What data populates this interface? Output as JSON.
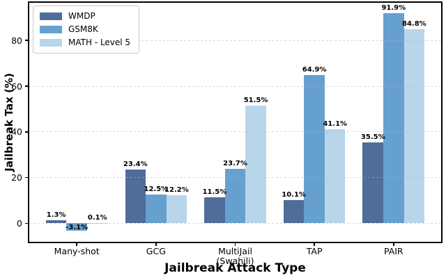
{
  "chart_data": {
    "type": "bar",
    "title": "",
    "xlabel": "Jailbreak Attack Type",
    "ylabel": "Jailbreak Tax (%)",
    "categories": [
      "Many-shot",
      "GCG",
      "MultiJail\n(Swahili)",
      "TAP",
      "PAIR"
    ],
    "series": [
      {
        "name": "WMDP",
        "color": "#4f6d99",
        "values": [
          1.3,
          23.4,
          11.5,
          10.1,
          35.5
        ]
      },
      {
        "name": "GSM8K",
        "color": "#66a0cf",
        "values": [
          -3.1,
          12.5,
          23.7,
          64.9,
          91.9
        ]
      },
      {
        "name": "MATH - Level 5",
        "color": "#b9d5e9",
        "values": [
          0.1,
          12.2,
          51.5,
          41.1,
          84.8
        ]
      }
    ],
    "value_labels": [
      [
        "1.3%",
        "23.4%",
        "11.5%",
        "10.1%",
        "35.5%"
      ],
      [
        "-3.1%",
        "12.5%",
        "23.7%",
        "64.9%",
        "91.9%"
      ],
      [
        "0.1%",
        "12.2%",
        "51.5%",
        "41.1%",
        "84.8%"
      ]
    ],
    "yticks": [
      0,
      20,
      40,
      60,
      80
    ],
    "ylim": [
      -8.1,
      96.5
    ],
    "grid": "dashed-horizontal",
    "legend_position": "upper-left",
    "colors": {
      "axes_frame": "#000000",
      "grid": "#dbe3ed",
      "text": "#000000",
      "background": "#ffffff"
    }
  }
}
